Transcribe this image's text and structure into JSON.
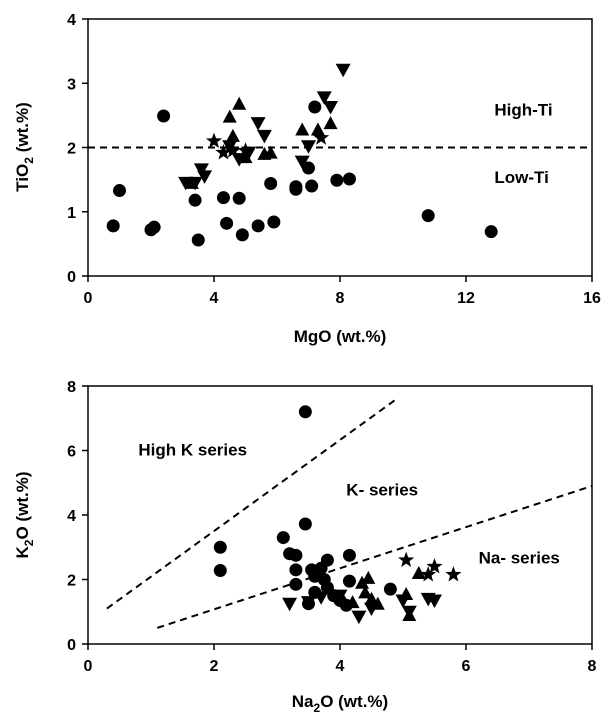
{
  "chart_data": [
    {
      "type": "scatter",
      "xlim": [
        0,
        16
      ],
      "ylim": [
        0,
        4
      ],
      "xticks": [
        "0",
        "4",
        "8",
        "12",
        "16"
      ],
      "yticks": [
        "0",
        "1",
        "2",
        "3",
        "4"
      ],
      "xlabel": "MgO (wt.%)",
      "ylabel_main": "TiO",
      "ylabel_sub": "2",
      "ylabel_rest": " (wt.%)",
      "grid": false,
      "annotations": [
        {
          "text": "High-Ti",
          "x": 12.9,
          "y": 2.5
        },
        {
          "text": "Low-Ti",
          "x": 12.9,
          "y": 1.45
        }
      ],
      "lines": [
        {
          "style": "dashed",
          "x1": 0,
          "y1": 2.0,
          "x2": 16,
          "y2": 2.0
        }
      ],
      "series": [
        {
          "marker": "circle",
          "points": [
            [
              0.8,
              0.78
            ],
            [
              1.0,
              1.33
            ],
            [
              2.0,
              0.72
            ],
            [
              2.1,
              0.76
            ],
            [
              2.4,
              2.49
            ],
            [
              3.4,
              1.18
            ],
            [
              3.5,
              0.56
            ],
            [
              4.3,
              1.22
            ],
            [
              4.4,
              0.82
            ],
            [
              4.8,
              1.21
            ],
            [
              4.9,
              0.64
            ],
            [
              5.4,
              0.78
            ],
            [
              5.8,
              1.44
            ],
            [
              5.9,
              0.84
            ],
            [
              6.6,
              1.39
            ],
            [
              6.6,
              1.35
            ],
            [
              7.0,
              1.68
            ],
            [
              7.1,
              1.4
            ],
            [
              7.2,
              2.63
            ],
            [
              7.9,
              1.49
            ],
            [
              8.3,
              1.51
            ],
            [
              10.8,
              0.94
            ],
            [
              12.8,
              0.69
            ]
          ]
        },
        {
          "marker": "triangle-down",
          "points": [
            [
              3.1,
              1.45
            ],
            [
              3.4,
              1.45
            ],
            [
              3.6,
              1.66
            ],
            [
              3.7,
              1.55
            ],
            [
              4.5,
              2.02
            ],
            [
              4.8,
              1.82
            ],
            [
              5.1,
              1.92
            ],
            [
              5.4,
              2.38
            ],
            [
              5.6,
              2.18
            ],
            [
              6.8,
              1.78
            ],
            [
              7.0,
              2.02
            ],
            [
              7.5,
              2.78
            ],
            [
              7.7,
              2.63
            ],
            [
              8.1,
              3.21
            ]
          ]
        },
        {
          "marker": "triangle-up",
          "points": [
            [
              3.3,
              1.45
            ],
            [
              4.5,
              2.48
            ],
            [
              4.6,
              2.18
            ],
            [
              4.8,
              2.68
            ],
            [
              5.0,
              1.85
            ],
            [
              5.6,
              1.9
            ],
            [
              5.8,
              1.92
            ],
            [
              6.8,
              2.28
            ],
            [
              7.3,
              2.28
            ],
            [
              7.7,
              2.38
            ]
          ]
        },
        {
          "marker": "star",
          "points": [
            [
              4.0,
              2.1
            ],
            [
              4.3,
              1.92
            ],
            [
              4.6,
              1.95
            ],
            [
              5.0,
              1.95
            ],
            [
              7.4,
              2.15
            ]
          ]
        }
      ]
    },
    {
      "type": "scatter",
      "xlim": [
        0,
        8
      ],
      "ylim": [
        0,
        8
      ],
      "xticks": [
        "0",
        "2",
        "4",
        "6",
        "8"
      ],
      "yticks": [
        "0",
        "2",
        "4",
        "6",
        "8"
      ],
      "xlabel_main": "Na",
      "xlabel_sub": "2",
      "xlabel_rest": "O (wt.%)",
      "ylabel_main": "K",
      "ylabel_sub": "2",
      "ylabel_rest": "O (wt.%)",
      "grid": false,
      "annotations": [
        {
          "text": "High K series",
          "x": 0.8,
          "y": 5.85
        },
        {
          "text": "K- series",
          "x": 4.1,
          "y": 4.6
        },
        {
          "text": "Na- series",
          "x": 6.2,
          "y": 2.5
        }
      ],
      "lines": [
        {
          "style": "dashed",
          "x1": 0.3,
          "y1": 1.1,
          "x2": 4.9,
          "y2": 7.6
        },
        {
          "style": "dashed",
          "x1": 1.1,
          "y1": 0.5,
          "x2": 8.0,
          "y2": 4.9
        }
      ],
      "series": [
        {
          "marker": "circle",
          "points": [
            [
              2.1,
              3.0
            ],
            [
              2.1,
              2.28
            ],
            [
              3.1,
              3.3
            ],
            [
              3.2,
              2.8
            ],
            [
              3.3,
              2.75
            ],
            [
              3.3,
              2.3
            ],
            [
              3.3,
              1.85
            ],
            [
              3.45,
              7.2
            ],
            [
              3.45,
              3.72
            ],
            [
              3.5,
              1.25
            ],
            [
              3.55,
              2.3
            ],
            [
              3.6,
              2.1
            ],
            [
              3.6,
              1.6
            ],
            [
              3.7,
              2.35
            ],
            [
              3.75,
              2.0
            ],
            [
              3.8,
              1.75
            ],
            [
              3.8,
              2.6
            ],
            [
              3.9,
              1.5
            ],
            [
              4.0,
              1.35
            ],
            [
              4.1,
              1.2
            ],
            [
              4.15,
              1.95
            ],
            [
              4.15,
              2.75
            ],
            [
              4.8,
              1.7
            ]
          ]
        },
        {
          "marker": "triangle-down",
          "points": [
            [
              3.2,
              1.25
            ],
            [
              3.5,
              1.3
            ],
            [
              3.7,
              1.45
            ],
            [
              4.0,
              1.5
            ],
            [
              4.3,
              0.85
            ],
            [
              4.5,
              1.1
            ],
            [
              5.0,
              1.35
            ],
            [
              5.1,
              1.0
            ],
            [
              5.4,
              1.4
            ],
            [
              5.5,
              1.35
            ]
          ]
        },
        {
          "marker": "triangle-up",
          "points": [
            [
              4.2,
              1.3
            ],
            [
              4.35,
              1.9
            ],
            [
              4.4,
              1.6
            ],
            [
              4.45,
              2.05
            ],
            [
              4.5,
              1.4
            ],
            [
              4.6,
              1.25
            ],
            [
              5.05,
              1.55
            ],
            [
              5.1,
              0.9
            ],
            [
              5.25,
              2.2
            ]
          ]
        },
        {
          "marker": "star",
          "points": [
            [
              5.05,
              2.6
            ],
            [
              5.4,
              2.15
            ],
            [
              5.5,
              2.4
            ],
            [
              5.8,
              2.15
            ]
          ]
        }
      ]
    }
  ]
}
